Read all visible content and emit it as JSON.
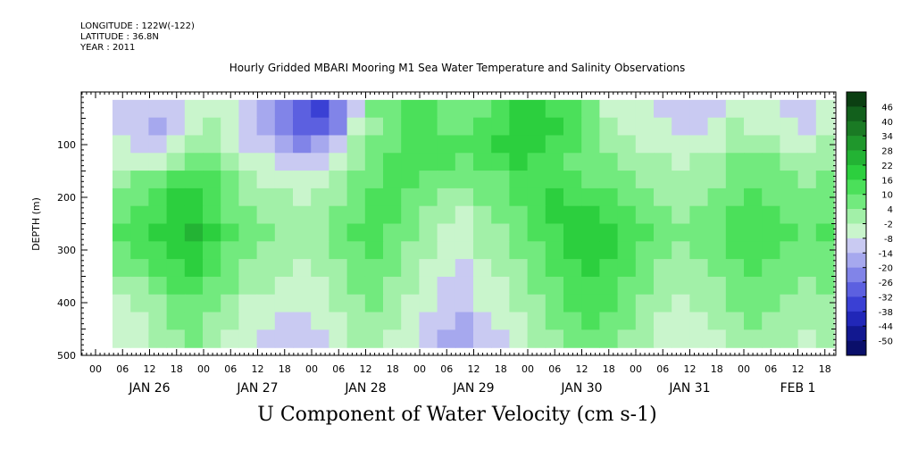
{
  "header": {
    "longitude": "LONGITUDE : 122W(-122)",
    "latitude": "LATITUDE : 36.8N",
    "year": "YEAR : 2011"
  },
  "chart_data": {
    "type": "heatmap",
    "title": "Hourly Gridded MBARI Mooring M1 Sea Water Temperature and Salinity Observations",
    "xlabel": "U Component of Water Velocity (cm s-1)",
    "ylabel": "DEPTH (m)",
    "ylim": [
      500,
      0
    ],
    "y_ticks": [
      100,
      200,
      300,
      400,
      500
    ],
    "x_hour_ticks": [
      "00",
      "06",
      "12",
      "18",
      "00",
      "06",
      "12",
      "18",
      "00",
      "06",
      "12",
      "18",
      "00",
      "06",
      "12",
      "18",
      "00",
      "06",
      "12",
      "18",
      "00",
      "06",
      "12",
      "18",
      "00",
      "06",
      "12",
      "18"
    ],
    "x_day_labels": [
      "JAN 26",
      "JAN 27",
      "JAN 28",
      "JAN 29",
      "JAN 30",
      "JAN 31",
      "FEB  1"
    ],
    "colorbar": {
      "levels": [
        "46",
        "40",
        "34",
        "28",
        "22",
        "16",
        "10",
        "4",
        "-2",
        "-8",
        "-14",
        "-20",
        "-26",
        "-32",
        "-38",
        "-44",
        "-50"
      ],
      "colors": [
        "#0b3f12",
        "#12601c",
        "#1a7a24",
        "#1f972c",
        "#23b334",
        "#2ccf3e",
        "#4be05a",
        "#72ea7e",
        "#a2f0a8",
        "#c9f5cc",
        "#c9caf2",
        "#a6a8ee",
        "#8184e8",
        "#5c60e0",
        "#3a40d4",
        "#2127b8",
        "#121890",
        "#0a0f6a"
      ]
    },
    "grid_cols": 40,
    "grid_rows": 14,
    "values": [
      [
        -10,
        -12,
        -14,
        -12,
        -8,
        -4,
        -6,
        -12,
        -16,
        -22,
        -30,
        -34,
        -26,
        -10,
        4,
        8,
        12,
        10,
        6,
        4,
        8,
        12,
        16,
        18,
        14,
        10,
        6,
        -4,
        -6,
        -8,
        -10,
        -12,
        -14,
        -10,
        -4,
        -6,
        -8,
        -10,
        -12,
        -6
      ],
      [
        -12,
        -14,
        -18,
        -14,
        -6,
        -2,
        -8,
        -14,
        -18,
        -24,
        -32,
        -30,
        -22,
        -6,
        2,
        6,
        10,
        12,
        8,
        6,
        10,
        14,
        18,
        20,
        16,
        12,
        8,
        -2,
        -4,
        -6,
        -8,
        -10,
        -12,
        -8,
        -2,
        -4,
        -6,
        -8,
        -10,
        -4
      ],
      [
        -8,
        -10,
        -12,
        -8,
        -2,
        2,
        -4,
        -10,
        -14,
        -18,
        -22,
        -18,
        -12,
        -2,
        4,
        8,
        12,
        14,
        12,
        10,
        12,
        16,
        20,
        18,
        14,
        10,
        8,
        2,
        -2,
        -4,
        -6,
        -8,
        -6,
        -4,
        2,
        0,
        -2,
        -4,
        -6,
        -2
      ],
      [
        -4,
        -6,
        -4,
        2,
        6,
        8,
        2,
        -4,
        -8,
        -10,
        -12,
        -10,
        -6,
        0,
        6,
        10,
        14,
        12,
        10,
        8,
        10,
        12,
        16,
        14,
        10,
        8,
        6,
        4,
        2,
        0,
        -2,
        -4,
        -2,
        0,
        4,
        6,
        4,
        2,
        0,
        2
      ],
      [
        2,
        4,
        8,
        12,
        14,
        10,
        4,
        -2,
        -4,
        -6,
        -8,
        -6,
        -2,
        4,
        8,
        12,
        10,
        8,
        6,
        4,
        6,
        8,
        12,
        14,
        12,
        10,
        8,
        6,
        4,
        2,
        0,
        -2,
        0,
        2,
        6,
        8,
        6,
        4,
        2,
        4
      ],
      [
        6,
        8,
        12,
        16,
        18,
        12,
        6,
        2,
        0,
        -2,
        -4,
        -2,
        2,
        6,
        10,
        12,
        8,
        4,
        2,
        0,
        4,
        6,
        10,
        14,
        16,
        14,
        12,
        10,
        6,
        4,
        2,
        0,
        2,
        4,
        8,
        10,
        8,
        6,
        4,
        6
      ],
      [
        8,
        10,
        14,
        18,
        20,
        14,
        8,
        4,
        2,
        0,
        -2,
        0,
        4,
        8,
        12,
        10,
        6,
        2,
        -2,
        -4,
        2,
        4,
        8,
        12,
        16,
        18,
        16,
        14,
        10,
        6,
        4,
        2,
        4,
        6,
        10,
        12,
        10,
        8,
        6,
        8
      ],
      [
        10,
        12,
        16,
        20,
        22,
        16,
        10,
        6,
        4,
        2,
        0,
        2,
        6,
        10,
        12,
        8,
        4,
        0,
        -4,
        -6,
        0,
        2,
        6,
        10,
        14,
        18,
        20,
        18,
        14,
        10,
        6,
        4,
        6,
        8,
        12,
        14,
        12,
        10,
        8,
        10
      ],
      [
        8,
        10,
        14,
        18,
        20,
        14,
        8,
        4,
        2,
        0,
        -2,
        0,
        4,
        8,
        10,
        6,
        2,
        -2,
        -6,
        -8,
        -2,
        0,
        4,
        8,
        12,
        16,
        18,
        16,
        12,
        8,
        4,
        2,
        4,
        6,
        10,
        12,
        10,
        8,
        6,
        8
      ],
      [
        4,
        6,
        10,
        14,
        16,
        12,
        6,
        2,
        0,
        -2,
        -4,
        -2,
        2,
        6,
        8,
        4,
        0,
        -4,
        -8,
        -10,
        -4,
        -2,
        2,
        6,
        10,
        14,
        16,
        14,
        10,
        6,
        2,
        0,
        2,
        4,
        8,
        10,
        8,
        6,
        4,
        6
      ],
      [
        0,
        2,
        6,
        10,
        12,
        8,
        4,
        0,
        -2,
        -4,
        -6,
        -4,
        0,
        4,
        6,
        2,
        -2,
        -6,
        -10,
        -12,
        -6,
        -4,
        0,
        4,
        8,
        12,
        14,
        12,
        8,
        4,
        0,
        -2,
        0,
        2,
        6,
        8,
        6,
        4,
        2,
        4
      ],
      [
        -4,
        -2,
        2,
        6,
        8,
        4,
        0,
        -4,
        -6,
        -8,
        -8,
        -6,
        -2,
        2,
        4,
        0,
        -4,
        -8,
        -12,
        -14,
        -8,
        -6,
        -2,
        2,
        6,
        10,
        12,
        10,
        6,
        2,
        -2,
        -4,
        -2,
        0,
        4,
        6,
        4,
        2,
        0,
        2
      ],
      [
        -6,
        -4,
        0,
        4,
        6,
        2,
        -2,
        -6,
        -8,
        -10,
        -10,
        -8,
        -4,
        0,
        2,
        -2,
        -6,
        -10,
        -14,
        -16,
        -10,
        -8,
        -4,
        0,
        4,
        8,
        10,
        8,
        4,
        0,
        -4,
        -6,
        -4,
        -2,
        2,
        4,
        2,
        0,
        -2,
        0
      ],
      [
        -8,
        -6,
        -2,
        2,
        4,
        0,
        -4,
        -8,
        -10,
        -12,
        -12,
        -10,
        -6,
        -2,
        0,
        -4,
        -8,
        -12,
        -16,
        -18,
        -12,
        -10,
        -6,
        -2,
        2,
        6,
        8,
        6,
        2,
        -2,
        -6,
        -8,
        -6,
        -4,
        0,
        2,
        0,
        -2,
        -4,
        -2
      ]
    ]
  }
}
